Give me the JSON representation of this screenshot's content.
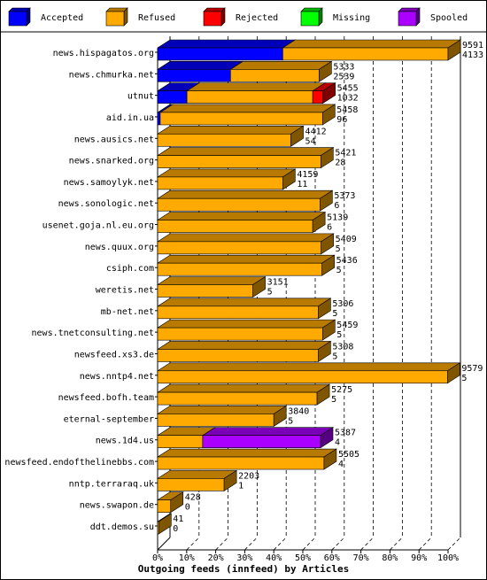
{
  "chart_data": {
    "type": "bar",
    "orientation": "horizontal",
    "stacked": true,
    "title": "Outgoing feeds (innfeed) by Articles",
    "xlabel": "",
    "ylabel": "",
    "xlim": [
      0,
      100
    ],
    "x_unit": "%",
    "ticks": [
      "0%",
      "10%",
      "20%",
      "30%",
      "40%",
      "50%",
      "60%",
      "70%",
      "80%",
      "90%",
      "100%"
    ],
    "grid": "vertical dashed",
    "legend_position": "top",
    "legend": [
      {
        "name": "Accepted",
        "color": "#0000ff"
      },
      {
        "name": "Refused",
        "color": "#ffaa00"
      },
      {
        "name": "Rejected",
        "color": "#ff0000"
      },
      {
        "name": "Missing",
        "color": "#00ff00"
      },
      {
        "name": "Spooled",
        "color": "#aa00ff"
      }
    ],
    "categories": [
      "news.hispagatos.org",
      "news.chmurka.net",
      "utnut",
      "aid.in.ua",
      "news.ausics.net",
      "news.snarked.org",
      "news.samoylyk.net",
      "news.sonologic.net",
      "usenet.goja.nl.eu.org",
      "news.quux.org",
      "csiph.com",
      "weretis.net",
      "mb-net.net",
      "news.tnetconsulting.net",
      "newsfeed.xs3.de",
      "news.nntp4.net",
      "newsfeed.bofh.team",
      "eternal-september",
      "news.1d4.us",
      "newsfeed.endofthelinebbs.com",
      "nntp.terraraq.uk",
      "news.swapon.de",
      "ddt.demos.su"
    ],
    "label_top": [
      "9591",
      "5333",
      "5455",
      "5458",
      "4412",
      "5421",
      "4159",
      "5373",
      "5139",
      "5409",
      "5436",
      "3151",
      "5306",
      "5459",
      "5308",
      "9579",
      "5275",
      "3840",
      "5387",
      "5505",
      "2203",
      "428",
      "41"
    ],
    "label_bottom": [
      "4133",
      "2539",
      "1032",
      "96",
      "54",
      "28",
      "11",
      "6",
      "6",
      "5",
      "5",
      "5",
      "5",
      "5",
      "5",
      "5",
      "5",
      "5",
      "4",
      "4",
      "1",
      "0",
      "0"
    ],
    "series": [
      {
        "name": "Accepted",
        "values": [
          43.1,
          25.1,
          10.1,
          0.9,
          0,
          0,
          0,
          0,
          0,
          0,
          0,
          0,
          0,
          0,
          0,
          0,
          0,
          0,
          0,
          0,
          0,
          0,
          0
        ]
      },
      {
        "name": "Refused",
        "values": [
          56.9,
          30.5,
          43.3,
          55.9,
          45.9,
          56.2,
          43.1,
          55.9,
          53.4,
          56.3,
          56.6,
          32.8,
          55.3,
          56.8,
          55.3,
          99.8,
          54.9,
          40.0,
          15.5,
          57.3,
          22.9,
          4.5,
          0.4
        ]
      },
      {
        "name": "Rejected",
        "values": [
          0,
          0,
          3.5,
          0,
          0,
          0,
          0,
          0,
          0,
          0,
          0,
          0,
          0,
          0,
          0,
          0,
          0,
          0,
          0,
          0,
          0,
          0,
          0
        ]
      },
      {
        "name": "Missing",
        "values": [
          0,
          0,
          0,
          0,
          0,
          0,
          0,
          0,
          0,
          0,
          0,
          0,
          0,
          0,
          0,
          0,
          0,
          0,
          0,
          0,
          0,
          0,
          0
        ]
      },
      {
        "name": "Spooled",
        "values": [
          0,
          0,
          0,
          0,
          0,
          0,
          0,
          0,
          0,
          0,
          0,
          0,
          0,
          0,
          0,
          0,
          0,
          0,
          40.6,
          0,
          0,
          0,
          0
        ]
      }
    ]
  }
}
